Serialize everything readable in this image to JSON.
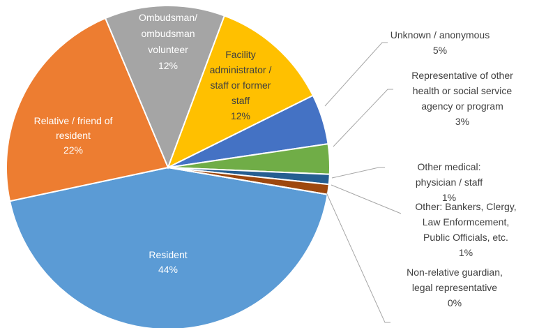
{
  "chart_data": {
    "type": "pie",
    "categories": [
      [
        "Resident"
      ],
      [
        "Relative / friend of",
        "resident"
      ],
      [
        "Ombudsman/",
        "ombudsman",
        "volunteer"
      ],
      [
        "Facility",
        "administrator /",
        "staff or former",
        "staff"
      ],
      [
        "Unknown / anonymous"
      ],
      [
        "Representative of other",
        "health or social service",
        "agency or program"
      ],
      [
        "Other medical:",
        "physician / staff"
      ],
      [
        "Other:  Bankers, Clergy,",
        "Law Enformcement,",
        "Public Officials, etc."
      ],
      [
        "Non-relative guardian,",
        "legal representative"
      ]
    ],
    "values": [
      44,
      22,
      12,
      12,
      5,
      3,
      1,
      1,
      0
    ],
    "value_labels": [
      "44%",
      "22%",
      "12%",
      "12%",
      "5%",
      "3%",
      "1%",
      "1%",
      "0%"
    ],
    "colors": [
      "#5b9bd5",
      "#ed7d31",
      "#a5a5a5",
      "#ffc000",
      "#4472c4",
      "#70ad47",
      "#255e91",
      "#9e480e",
      "#636363"
    ]
  }
}
